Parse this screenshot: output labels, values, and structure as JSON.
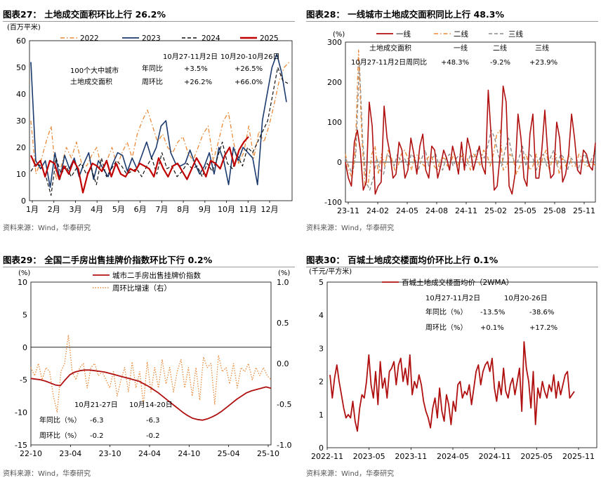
{
  "colors": {
    "c2022": "#e98a3a",
    "c2023": "#1b3a6e",
    "c2024": "#111111",
    "c2025": "#c00000",
    "line1": "#b01010",
    "line2": "#e98a3a",
    "line3": "#8c8c8c",
    "text": "#000000",
    "source": "#555555"
  },
  "panels": [
    {
      "title": "图表27： 土地成交面积环比上行 26.2%",
      "source": "资料来源：Wind，华泰研究"
    },
    {
      "title": "图表28： 一线城市土地成交面积同比上行 48.3%",
      "source": "资料来源：Wind，华泰研究"
    },
    {
      "title": "图表29： 全国二手房出售挂牌价指数环比下行 0.2%",
      "source": "资料来源：Wind，华泰研究"
    },
    {
      "title": "图表30： 百城土地成交楼面均价环比上行 0.1%",
      "source": "资料来源：Wind，华泰研究"
    }
  ],
  "chart_data": [
    {
      "type": "line",
      "title": "图表27： 土地成交面积环比上行 26.2%",
      "ylabel": "(百万平米)",
      "ylim": [
        0,
        60
      ],
      "yticks": [
        "0",
        "10",
        "20",
        "30",
        "40",
        "50",
        "60"
      ],
      "xticks": [
        "1月",
        "2月",
        "3月",
        "4月",
        "5月",
        "6月",
        "7月",
        "8月",
        "9月",
        "10月",
        "11月",
        "12月"
      ],
      "series": [
        {
          "name": "2022",
          "style": "dashdot",
          "values": [
            30,
            10,
            15,
            22,
            28,
            8,
            13,
            20,
            16,
            22,
            14,
            13,
            17,
            20,
            12,
            15,
            20,
            13,
            18,
            22,
            16,
            25,
            30,
            34,
            28,
            22,
            25,
            20,
            18,
            22,
            24,
            18,
            15,
            20,
            25,
            28,
            15,
            22,
            30,
            33,
            22,
            14,
            18,
            28,
            16,
            26,
            22,
            28,
            36,
            45,
            50,
            52
          ]
        },
        {
          "name": "2023",
          "style": "solid",
          "values": [
            52,
            15,
            12,
            15,
            5,
            18,
            8,
            17,
            12,
            16,
            9,
            14,
            18,
            8,
            15,
            12,
            9,
            14,
            18,
            17,
            11,
            16,
            12,
            17,
            22,
            16,
            20,
            28,
            30,
            18,
            14,
            13,
            14,
            19,
            14,
            10,
            13,
            18,
            10,
            20,
            15,
            6,
            20,
            15,
            20,
            18,
            16,
            6,
            30,
            40,
            50,
            55,
            48,
            37
          ]
        },
        {
          "name": "2024",
          "style": "dashed",
          "values": [
            11,
            14,
            13,
            9,
            2,
            16,
            10,
            13,
            9,
            12,
            14,
            10,
            12,
            6,
            16,
            9,
            12,
            15,
            13,
            10,
            11,
            12,
            9,
            13,
            16,
            10,
            18,
            12,
            13,
            9,
            11,
            14,
            12,
            13,
            9,
            14,
            11,
            16,
            22,
            14,
            12,
            17,
            13,
            20,
            18,
            22,
            26,
            30,
            40,
            50,
            45,
            44
          ]
        },
        {
          "name": "2025",
          "style": "solid",
          "values": [
            17,
            13,
            15,
            9,
            15,
            14,
            8,
            13,
            10,
            15,
            12,
            3,
            10,
            14,
            13,
            11,
            15,
            9,
            14,
            10,
            9,
            12,
            11,
            14,
            13,
            12,
            9,
            16,
            12,
            9,
            13,
            14,
            11,
            8,
            12,
            16,
            13,
            9,
            15,
            14,
            12,
            17,
            20,
            13,
            19,
            22,
            24
          ]
        }
      ],
      "annotations": {
        "label1": "100个大中城市",
        "label2": "土地成交面积",
        "head1": "10月27-11月2日",
        "head2": "10月20-10月26日",
        "row1": "年同比",
        "row1v1": "+3.5%",
        "row1v2": "+26.5%",
        "row2": "周环比",
        "row2v1": "+26.2%",
        "row2v2": "+66.0%"
      }
    },
    {
      "type": "line",
      "title": "图表28： 一线城市土地成交面积同比上行 48.3%",
      "ylabel": "(%)",
      "ylim": [
        -100,
        300
      ],
      "yticks": [
        "-100",
        "0",
        "100",
        "200",
        "300"
      ],
      "xticks": [
        "23-11",
        "24-02",
        "24-05",
        "24-08",
        "24-11",
        "25-02",
        "25-05",
        "25-08",
        "25-11"
      ],
      "series": [
        {
          "name": "一线",
          "values": [
            0,
            -40,
            -60,
            50,
            80,
            30,
            -70,
            -50,
            150,
            90,
            -80,
            -60,
            -50,
            140,
            60,
            20,
            -40,
            -30,
            50,
            30,
            -40,
            -20,
            60,
            20,
            -30,
            40,
            70,
            -20,
            -40,
            40,
            30,
            -40,
            -10,
            30,
            10,
            -20,
            40,
            10,
            -30,
            50,
            -20,
            60,
            30,
            -20,
            10,
            40,
            -10,
            -30,
            180,
            60,
            -70,
            -60,
            20,
            190,
            150,
            -60,
            -80,
            -30,
            120,
            60,
            -40,
            -60,
            70,
            120,
            -40,
            -40,
            30,
            130,
            20,
            -40,
            -30,
            100,
            60,
            -50,
            -30,
            20,
            120,
            60,
            -20,
            -30,
            30,
            20,
            -10,
            -20,
            48
          ]
        },
        {
          "name": "二线",
          "style": "dashdot",
          "values": [
            20,
            -20,
            -40,
            30,
            280,
            60,
            -60,
            -50,
            20,
            40,
            -30,
            20,
            -10,
            30,
            10,
            -20,
            -10,
            20,
            30,
            10,
            -20,
            10,
            20,
            0,
            -10,
            10,
            20,
            -10,
            -20,
            10,
            10,
            -10,
            0,
            20,
            -10,
            10,
            20,
            10,
            -20,
            20,
            10,
            -10,
            30,
            20,
            -10,
            20,
            70,
            80,
            -20,
            -10,
            20,
            10,
            -30,
            -10,
            10,
            20,
            -20,
            -10,
            20,
            -20,
            10,
            30,
            -20,
            10,
            20,
            -30,
            10,
            -10,
            20,
            -10,
            -10,
            20,
            10,
            -10,
            -10,
            0,
            -9
          ]
        },
        {
          "name": "三线",
          "style": "dashed",
          "values": [
            10,
            -10,
            -30,
            20,
            250,
            50,
            -50,
            -70,
            -40,
            10,
            -20,
            -30,
            20,
            10,
            -10,
            20,
            0,
            10,
            -10,
            20,
            10,
            -20,
            10,
            30,
            -10,
            10,
            20,
            -10,
            -20,
            10,
            20,
            -10,
            10,
            20,
            0,
            -10,
            20,
            10,
            30,
            20,
            10,
            40,
            80,
            60,
            20,
            -10,
            30,
            60,
            20,
            -10,
            10,
            40,
            -10,
            20,
            10,
            -20,
            10,
            20,
            -10,
            10,
            30,
            -10,
            20,
            10,
            -20,
            10,
            0,
            -20,
            10,
            20,
            -10,
            10,
            24
          ]
        }
      ],
      "annotations": {
        "label": "土地成交面积",
        "head1": "一线",
        "head2": "二线",
        "head3": "三线",
        "row": "10月27-11月2日周同比",
        "v1": "+48.3%",
        "v2": "-9.2%",
        "v3": "+23.9%"
      }
    },
    {
      "type": "line",
      "title": "图表29： 全国二手房出售挂牌价指数环比下行 0.2%",
      "ylabel": "(%)",
      "y2label": "(%)",
      "ylim": [
        -15,
        10
      ],
      "yticks": [
        "-15",
        "-10",
        "-5",
        "0",
        "5",
        "10"
      ],
      "y2lim": [
        -1.0,
        1.0
      ],
      "y2ticks": [
        "-1.0",
        "-0.5",
        "0.0",
        "0.5",
        "1.0"
      ],
      "xticks": [
        "22-10",
        "23-04",
        "23-10",
        "24-04",
        "24-10",
        "25-04",
        "25-10"
      ],
      "series": [
        {
          "name": "城市二手房出售挂牌价指数",
          "axis": "left",
          "values": [
            -4.8,
            -4.9,
            -5.0,
            -5.2,
            -5.5,
            -5.8,
            -5.9,
            -5.0,
            -4.2,
            -3.8,
            -3.6,
            -3.5,
            -3.5,
            -3.6,
            -3.7,
            -3.8,
            -4.0,
            -4.2,
            -4.4,
            -4.6,
            -4.8,
            -5.0,
            -5.2,
            -5.6,
            -6.0,
            -6.5,
            -7.0,
            -7.6,
            -8.2,
            -8.8,
            -9.4,
            -10.0,
            -10.5,
            -10.9,
            -11.1,
            -11.2,
            -11.0,
            -10.7,
            -10.3,
            -9.8,
            -9.2,
            -8.6,
            -8.0,
            -7.5,
            -7.0,
            -6.7,
            -6.5,
            -6.3,
            -6.1,
            -6.3
          ]
        },
        {
          "name": "周环比增速（右）",
          "axis": "right",
          "style": "dotted",
          "values": [
            -0.05,
            -0.15,
            0.0,
            -0.2,
            -0.05,
            -0.1,
            -0.4,
            -0.6,
            -0.1,
            0.0,
            0.35,
            -0.1,
            -0.2,
            -0.05,
            0.0,
            -0.3,
            -0.05,
            0.0,
            -0.15,
            -0.1,
            -0.2,
            -0.3,
            -0.1,
            -0.4,
            -0.2,
            -0.05,
            -0.35,
            0.02,
            -0.3,
            -0.1,
            -0.5,
            0.02,
            -0.35,
            -0.05,
            -0.3,
            0.05,
            -0.25,
            -0.05,
            -0.35,
            -0.1,
            0.05,
            -0.3,
            -0.05,
            -0.4,
            -0.05,
            -0.45,
            0.08,
            -0.05,
            0.0,
            -0.5,
            0.1,
            -0.1,
            -0.05,
            -0.25,
            0.0,
            -0.3,
            -0.05,
            -0.1,
            0.0,
            -0.2,
            -0.05,
            -0.15,
            -0.05,
            -0.15,
            -0.2
          ]
        }
      ],
      "annotations": {
        "head1": "10月21-27日",
        "head2": "10月14-20日",
        "row1": "年同比（%）",
        "row1v1": "-6.3",
        "row1v2": "-6.3",
        "row2": "周环比（%）",
        "row2v1": "-0.2",
        "row2v2": "-0.2"
      }
    },
    {
      "type": "line",
      "title": "图表30： 百城土地成交楼面均价环比上行 0.1%",
      "ylabel": "(千元/平方米)",
      "ylim": [
        0,
        5
      ],
      "yticks": [
        "0",
        "1",
        "2",
        "3",
        "4",
        "5"
      ],
      "xticks": [
        "2022-11",
        "2023-05",
        "2023-11",
        "2024-05",
        "2024-11",
        "2025-05",
        "2025-11"
      ],
      "series": [
        {
          "name": "百城土地成交楼面均价（2WMA）",
          "values": [
            2.2,
            1.5,
            2.1,
            2.5,
            2.0,
            1.6,
            1.2,
            0.9,
            1.0,
            0.9,
            1.4,
            0.8,
            0.5,
            1.2,
            1.6,
            1.5,
            2.0,
            2.8,
            1.9,
            1.5,
            2.3,
            1.3,
            2.6,
            1.8,
            2.1,
            1.5,
            2.3,
            2.4,
            2.6,
            1.9,
            2.5,
            2.7,
            2.0,
            2.4,
            1.9,
            2.8,
            1.6,
            2.0,
            1.8,
            2.2,
            1.9,
            1.4,
            1.1,
            0.9,
            0.6,
            1.2,
            1.5,
            0.9,
            1.8,
            1.1,
            0.8,
            1.6,
            1.3,
            0.7,
            1.4,
            1.1,
            1.9,
            2.0,
            1.5,
            1.7,
            1.6,
            1.9,
            1.3,
            1.8,
            2.3,
            2.5,
            1.9,
            2.3,
            2.5,
            2.6,
            2.3,
            2.7,
            1.8,
            1.4,
            2.0,
            1.6,
            2.4,
            1.7,
            1.5,
            1.9,
            2.1,
            1.6,
            2.0,
            2.4,
            1.1,
            3.2,
            2.4,
            2.0,
            1.2,
            2.3,
            0.7,
            1.8,
            1.5,
            2.0,
            1.7,
            1.5,
            1.9,
            1.7,
            2.2,
            1.5,
            2.0,
            1.6,
            1.9,
            2.2,
            2.3,
            1.5,
            1.6,
            1.7
          ]
        }
      ],
      "annotations": {
        "head1": "10月27-11月2日",
        "head2": "10月20-26日",
        "row1": "年同比（%）",
        "row1v1": "-13.5%",
        "row1v2": "-38.6%",
        "row2": "周环比（%）",
        "row2v1": "+0.1%",
        "row2v2": "+17.2%"
      }
    }
  ]
}
